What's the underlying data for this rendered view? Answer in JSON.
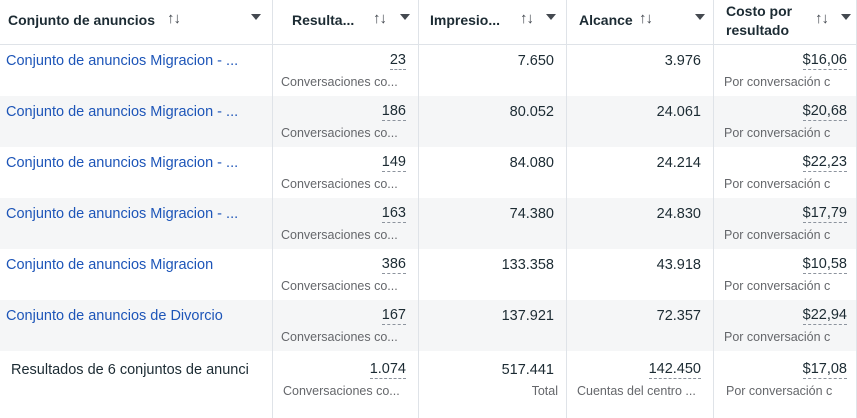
{
  "columns": [
    {
      "key": "name",
      "label": "Conjunto de anuncios"
    },
    {
      "key": "results",
      "label": "Resulta..."
    },
    {
      "key": "impressions",
      "label": "Impresio..."
    },
    {
      "key": "reach",
      "label": "Alcance"
    },
    {
      "key": "cost",
      "label": "Costo por resultado"
    }
  ],
  "icons": {
    "sort": "↑↓",
    "sort_icon_name": "sort-arrows-icon",
    "dropdown_icon_name": "caret-down-icon"
  },
  "rows": [
    {
      "name": "Conjunto de anuncios Migracion - ...",
      "results": "23",
      "results_sub": "Conversaciones co...",
      "impressions": "7.650",
      "reach": "3.976",
      "cost": "$16,06",
      "cost_sub": "Por conversación c"
    },
    {
      "name": "Conjunto de anuncios Migracion - ...",
      "results": "186",
      "results_sub": "Conversaciones co...",
      "impressions": "80.052",
      "reach": "24.061",
      "cost": "$20,68",
      "cost_sub": "Por conversación c"
    },
    {
      "name": "Conjunto de anuncios Migracion - ...",
      "results": "149",
      "results_sub": "Conversaciones co...",
      "impressions": "84.080",
      "reach": "24.214",
      "cost": "$22,23",
      "cost_sub": "Por conversación c"
    },
    {
      "name": "Conjunto de anuncios Migracion - ...",
      "results": "163",
      "results_sub": "Conversaciones co...",
      "impressions": "74.380",
      "reach": "24.830",
      "cost": "$17,79",
      "cost_sub": "Por conversación c"
    },
    {
      "name": "Conjunto de anuncios Migracion",
      "results": "386",
      "results_sub": "Conversaciones co...",
      "impressions": "133.358",
      "reach": "43.918",
      "cost": "$10,58",
      "cost_sub": "Por conversación c"
    },
    {
      "name": "Conjunto de anuncios de Divorcio",
      "results": "167",
      "results_sub": "Conversaciones co...",
      "impressions": "137.921",
      "reach": "72.357",
      "cost": "$22,94",
      "cost_sub": "Por conversación c"
    }
  ],
  "summary": {
    "label": "Resultados de 6 conjuntos de anunci",
    "results": "1.074",
    "results_sub": "Conversaciones co...",
    "impressions": "517.441",
    "impressions_sub": "Total",
    "reach": "142.450",
    "reach_sub": "Cuentas del centro ...",
    "cost": "$17,08",
    "cost_sub": "Por conversación c"
  },
  "colors": {
    "link": "#1d55b8",
    "text": "#1c2b33",
    "subtext": "#65676b",
    "alt_row_bg": "#f5f6f7",
    "border": "#dfe3e8"
  }
}
